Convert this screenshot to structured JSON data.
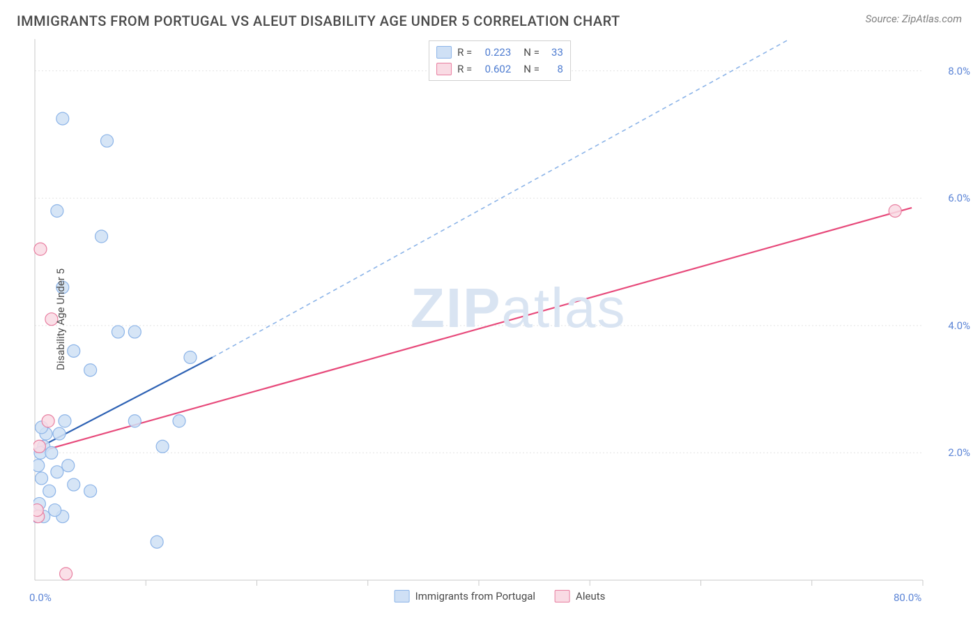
{
  "header": {
    "title": "IMMIGRANTS FROM PORTUGAL VS ALEUT DISABILITY AGE UNDER 5 CORRELATION CHART",
    "source_label": "Source: ZipAtlas.com"
  },
  "watermark": {
    "zip": "ZIP",
    "atlas": "atlas"
  },
  "axes": {
    "y_label": "Disability Age Under 5",
    "x_label": "",
    "xlim": [
      0,
      80
    ],
    "ylim": [
      0,
      8.5
    ],
    "y_ticks": [
      {
        "v": 2.0,
        "label": "2.0%"
      },
      {
        "v": 4.0,
        "label": "4.0%"
      },
      {
        "v": 6.0,
        "label": "6.0%"
      },
      {
        "v": 8.0,
        "label": "8.0%"
      }
    ],
    "x_tick_step_minor": 10,
    "x_ticks_labels": [
      {
        "v": 0,
        "label": "0.0%"
      },
      {
        "v": 80,
        "label": "80.0%"
      }
    ],
    "axis_color": "#c9c9c9",
    "grid_color": "#e3e3e3",
    "tick_label_color": "#5b84d6"
  },
  "series": {
    "portugal": {
      "name": "Immigrants from Portugal",
      "fill": "#cfe0f5",
      "stroke": "#8cb4e8",
      "line_solid_color": "#2e62b4",
      "line_dash_color": "#8cb4e8",
      "R": "0.223",
      "N": "33",
      "points": [
        [
          2.2,
          2.3
        ],
        [
          1.0,
          2.3
        ],
        [
          2.0,
          1.7
        ],
        [
          1.3,
          1.4
        ],
        [
          0.8,
          2.1
        ],
        [
          0.5,
          2.0
        ],
        [
          0.3,
          1.8
        ],
        [
          0.6,
          1.6
        ],
        [
          3.0,
          1.8
        ],
        [
          3.5,
          1.5
        ],
        [
          5.0,
          1.4
        ],
        [
          2.5,
          1.0
        ],
        [
          1.8,
          1.1
        ],
        [
          0.8,
          1.0
        ],
        [
          0.4,
          1.2
        ],
        [
          0.2,
          1.0
        ],
        [
          11.0,
          0.6
        ],
        [
          2.7,
          2.5
        ],
        [
          9.0,
          2.5
        ],
        [
          11.5,
          2.1
        ],
        [
          13.0,
          2.5
        ],
        [
          3.5,
          3.6
        ],
        [
          5.0,
          3.3
        ],
        [
          2.5,
          4.6
        ],
        [
          7.5,
          3.9
        ],
        [
          9.0,
          3.9
        ],
        [
          14.0,
          3.5
        ],
        [
          2.0,
          5.8
        ],
        [
          6.0,
          5.4
        ],
        [
          2.5,
          7.25
        ],
        [
          6.5,
          6.9
        ],
        [
          1.5,
          2.0
        ],
        [
          0.6,
          2.4
        ]
      ],
      "regression": {
        "x0": 0,
        "y0": 2.05,
        "x1_solid": 16,
        "y1_solid": 3.5,
        "x1_dash": 68,
        "y1_dash": 8.5
      }
    },
    "aleuts": {
      "name": "Aleuts",
      "fill": "#f9dbe4",
      "stroke": "#e87ea0",
      "line_color": "#e74a7b",
      "R": "0.602",
      "N": "8",
      "points": [
        [
          0.4,
          2.1
        ],
        [
          0.3,
          1.0
        ],
        [
          0.2,
          1.1
        ],
        [
          1.2,
          2.5
        ],
        [
          0.5,
          5.2
        ],
        [
          1.5,
          4.1
        ],
        [
          2.8,
          0.1
        ],
        [
          77.5,
          5.8
        ]
      ],
      "regression": {
        "x0": 0,
        "y0": 2.0,
        "x1": 79,
        "y1": 5.85
      }
    }
  },
  "legend_bottom": {
    "item1_label": "Immigrants from Portugal",
    "item2_label": "Aleuts"
  },
  "legend_top": {
    "r_label": "R =",
    "n_label": "N ="
  },
  "style": {
    "marker_radius": 9,
    "marker_stroke_width": 1.2,
    "trend_line_width": 2.2
  }
}
